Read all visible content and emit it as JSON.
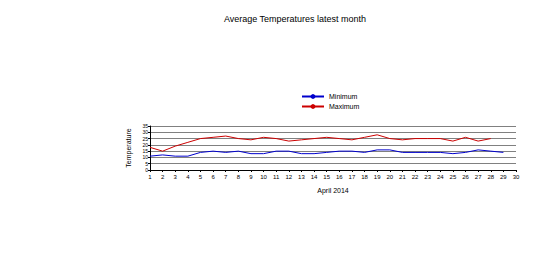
{
  "chart_data": {
    "type": "line",
    "title": "Average Temperatures latest month",
    "x_label": "April 2014",
    "y_label": "Temperature",
    "categories": [
      "1",
      "2",
      "3",
      "4",
      "5",
      "6",
      "7",
      "8",
      "9",
      "10",
      "11",
      "12",
      "13",
      "14",
      "15",
      "16",
      "17",
      "18",
      "19",
      "20",
      "21",
      "22",
      "23",
      "24",
      "25",
      "26",
      "27",
      "28",
      "29",
      "30"
    ],
    "series": [
      {
        "name": "Minimum",
        "color": "#0000cc",
        "values": [
          11,
          12,
          11,
          11,
          14,
          15,
          14,
          15,
          13,
          13,
          15,
          15,
          13,
          13,
          14,
          15,
          15,
          14,
          16,
          16,
          14,
          14,
          14,
          14,
          13,
          14,
          16,
          15,
          14,
          null
        ]
      },
      {
        "name": "Maximum",
        "color": "#cc0000",
        "values": [
          18,
          15,
          19,
          22,
          25,
          26,
          27,
          25,
          24,
          26,
          25,
          23,
          24,
          25,
          26,
          25,
          24,
          26,
          28,
          25,
          24,
          25,
          25,
          25,
          23,
          26,
          23,
          25,
          null,
          null
        ]
      }
    ],
    "ylim": [
      0,
      35
    ],
    "yticks": [
      0,
      5,
      10,
      15,
      20,
      25,
      30,
      35
    ],
    "grid": true,
    "legend": "top"
  }
}
